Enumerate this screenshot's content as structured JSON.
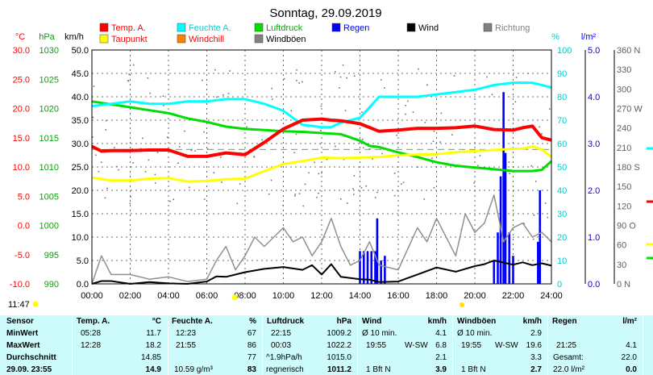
{
  "chart_data": {
    "type": "line",
    "title": "Sonntag, 29.09.2019",
    "x_ticks": [
      "00:00",
      "02:00",
      "04:00",
      "06:00",
      "08:00",
      "10:00",
      "12:00",
      "14:00",
      "16:00",
      "18:00",
      "20:00",
      "22:00",
      "24:00"
    ],
    "axes": {
      "temp": {
        "unit": "°C",
        "ticks": [
          "30.0",
          "25.0",
          "20.0",
          "15.0",
          "10.0",
          "5.0",
          "0.0",
          "-5.0",
          "-10.0"
        ],
        "range": [
          -10,
          30
        ]
      },
      "pressure": {
        "unit": "hPa",
        "ticks": [
          "1030",
          "1025",
          "1020",
          "1015",
          "1010",
          "1005",
          "1000",
          "995",
          "990"
        ],
        "range": [
          990,
          1030
        ]
      },
      "wind": {
        "unit": "km/h",
        "ticks": [
          "50.0",
          "45.0",
          "40.0",
          "35.0",
          "30.0",
          "25.0",
          "20.0",
          "15.0",
          "10.0",
          "5.0",
          "0.0"
        ],
        "range": [
          0,
          50
        ]
      },
      "humidity": {
        "unit": "%",
        "ticks": [
          "100",
          "90",
          "80",
          "70",
          "60",
          "50",
          "40",
          "30",
          "20",
          "10",
          "0"
        ],
        "range": [
          0,
          100
        ]
      },
      "rain": {
        "unit": "l/m²",
        "ticks": [
          "5.0",
          "4.0",
          "3.0",
          "2.0",
          "1.0",
          "0.0"
        ],
        "range": [
          0,
          5
        ]
      },
      "direction": {
        "ticks": [
          "360 N",
          "330",
          "300",
          "270 W",
          "240",
          "210",
          "180 S",
          "150",
          "120",
          "90 O",
          "60",
          "30",
          "0 N"
        ],
        "range": [
          0,
          360
        ]
      }
    },
    "legend": [
      {
        "label": "Temp. A.",
        "color": "#ff0000"
      },
      {
        "label": "Taupunkt",
        "color": "#ffff00"
      },
      {
        "label": "Feuchte A.",
        "color": "#00ffff"
      },
      {
        "label": "Windchill",
        "color": "#ff8000"
      },
      {
        "label": "Luftdruck",
        "color": "#00dd00"
      },
      {
        "label": "Windböen",
        "color": "#808080"
      },
      {
        "label": "Regen",
        "color": "#0000ff"
      },
      {
        "label": "Wind",
        "color": "#000000"
      },
      {
        "label": "Richtung",
        "color": "#808080"
      }
    ],
    "series": [
      {
        "name": "Temp. A.",
        "axis": "temp",
        "color": "#ff0000",
        "x": [
          0,
          0.5,
          1,
          2,
          3,
          4,
          5,
          6,
          7,
          8,
          9,
          10,
          11,
          12,
          12.5,
          13,
          14,
          15,
          16,
          17,
          18,
          19,
          20,
          21,
          22,
          22.5,
          23,
          23.5,
          24
        ],
        "y": [
          13.5,
          12.7,
          12.8,
          12.8,
          12.9,
          12.9,
          11.8,
          11.8,
          12.4,
          12.1,
          14.2,
          16.5,
          18,
          18.2,
          18,
          17.9,
          17.4,
          16.1,
          16.3,
          16.6,
          16.6,
          16.7,
          17,
          16.4,
          16.3,
          16.7,
          17,
          15,
          14.6
        ]
      },
      {
        "name": "Taupunkt",
        "axis": "temp",
        "color": "#ffff00",
        "x": [
          0,
          1,
          2,
          3,
          4,
          5,
          6,
          7,
          8,
          9,
          10,
          11,
          12,
          13,
          14,
          15,
          16,
          17,
          18,
          19,
          20,
          21,
          22,
          22.5,
          23,
          23.5,
          24
        ],
        "y": [
          8.2,
          7.7,
          7.7,
          8,
          8.1,
          7.5,
          7.6,
          7.9,
          8,
          9.3,
          10.5,
          11,
          11.6,
          11.5,
          11.6,
          11.7,
          12,
          12.1,
          12.2,
          12.5,
          12.7,
          12.9,
          13.1,
          13.1,
          13.5,
          13,
          11.7
        ]
      },
      {
        "name": "Feuchte A.",
        "axis": "humidity",
        "color": "#00ffff",
        "x": [
          0,
          1,
          2,
          3,
          4,
          5,
          6,
          7,
          8,
          9,
          10,
          11,
          12,
          12.5,
          13,
          14,
          15,
          16,
          17,
          18,
          19,
          20,
          21,
          22,
          23,
          24
        ],
        "y": [
          76,
          77,
          78,
          77,
          77,
          78,
          78,
          79,
          79,
          77,
          74,
          68,
          67,
          67,
          69,
          71,
          80,
          80,
          80,
          81,
          82,
          83,
          85,
          86,
          86,
          84
        ]
      },
      {
        "name": "Luftdruck",
        "axis": "pressure",
        "color": "#00dd00",
        "x": [
          0,
          1,
          2,
          3,
          4,
          5,
          6,
          7,
          8,
          9,
          10,
          11,
          12,
          13,
          14,
          14.5,
          15,
          16,
          17,
          18,
          19,
          20,
          21,
          22,
          23,
          23.5,
          24
        ],
        "y": [
          1021.2,
          1020.7,
          1020.2,
          1019.7,
          1019.2,
          1018.3,
          1017.7,
          1016.9,
          1016.5,
          1016.3,
          1016.1,
          1016,
          1015.8,
          1015.6,
          1014.5,
          1013.6,
          1013.4,
          1012.5,
          1011.7,
          1010.8,
          1010.2,
          1009.9,
          1009.6,
          1009.3,
          1009.3,
          1009.5,
          1011
        ]
      },
      {
        "name": "Wind",
        "axis": "wind",
        "color": "#000000",
        "x": [
          0,
          0.5,
          1,
          2,
          3,
          4,
          5,
          6,
          6.5,
          7,
          8,
          9,
          10,
          11,
          11.5,
          12,
          12.5,
          13,
          14,
          14.5,
          15,
          16,
          17,
          18,
          19,
          20,
          20.5,
          21,
          22,
          22.5,
          23,
          23.5,
          24
        ],
        "y": [
          0,
          0.6,
          0.6,
          0,
          0.4,
          0.1,
          0,
          0.5,
          1.6,
          1.5,
          2.5,
          3.2,
          3.6,
          3,
          4,
          2,
          4.2,
          1.5,
          1,
          0.9,
          0.4,
          0.5,
          2,
          3.5,
          2.6,
          3.8,
          4.2,
          5,
          4.1,
          4.6,
          4,
          4.4,
          3.9
        ]
      },
      {
        "name": "Windböen",
        "axis": "wind",
        "color": "#909090",
        "x": [
          0,
          0.5,
          1,
          2,
          3,
          4,
          5,
          6,
          6.5,
          7,
          7.5,
          8,
          8.5,
          9,
          10,
          10.5,
          11,
          11.5,
          12,
          12.5,
          13,
          13.5,
          14,
          14.5,
          15,
          16,
          17,
          17.5,
          18,
          18.5,
          19,
          19.5,
          20,
          20.5,
          21,
          21.5,
          22,
          22.5,
          23,
          23.5,
          24
        ],
        "y": [
          0,
          6,
          2,
          2,
          1,
          1.5,
          0.5,
          1,
          5,
          8,
          3,
          6,
          10,
          8,
          12,
          9,
          10,
          6,
          9,
          14,
          8,
          4,
          5,
          9,
          4,
          3,
          12,
          9,
          14,
          10,
          6,
          15,
          11,
          13,
          19,
          9,
          12,
          13,
          10,
          11,
          9
        ]
      },
      {
        "name": "Regen",
        "axis": "rain",
        "color": "#0000ff",
        "type": "bar",
        "x": [
          14.0,
          14.2,
          14.4,
          14.6,
          14.8,
          14.9,
          15.1,
          15.3,
          21.0,
          21.2,
          21.35,
          21.5,
          21.6,
          21.8,
          22.0,
          23.3,
          23.4
        ],
        "y": [
          0.7,
          0.7,
          0.7,
          0.7,
          0.7,
          1.4,
          0.5,
          0.6,
          0.5,
          1.1,
          2.3,
          4.1,
          2.8,
          1.1,
          0.6,
          0.9,
          2.0
        ]
      }
    ]
  },
  "footer_time": "11:47",
  "stats": {
    "row_labels": [
      "Sensor",
      "MinWert",
      "MaxWert",
      "Durchschnitt",
      "29.09. 23:55"
    ],
    "temp": {
      "header": "Temp. A.",
      "unit": "°C",
      "min_time": "05:28",
      "min": "11.7",
      "max_time": "12:28",
      "max": "18.2",
      "avg": "14.85",
      "current": "14.9"
    },
    "humidity": {
      "header": "Feuchte A.",
      "unit": "%",
      "min_time": "12:23",
      "min": "67",
      "max_time": "21:55",
      "max": "86",
      "avg": "77",
      "cur_extra": "10.59 g/m³",
      "current": "83"
    },
    "pressure": {
      "header": "Luftdruck",
      "unit": "hPa",
      "min_time": "22:15",
      "min": "1009.2",
      "max_time": "00:03",
      "max": "1022.2",
      "trend": "^1.9hPa/h",
      "avg": "1015.0",
      "cur_label": "regnerisch",
      "current": "1011.2"
    },
    "wind": {
      "header": "Wind",
      "unit": "km/h",
      "min_label": "Ø 10 min.",
      "min": "4.1",
      "max_time": "19:55",
      "max_dir": "W-SW",
      "max": "6.8",
      "avg": "2.1",
      "cur_label": "1 Bft N",
      "current": "3.9"
    },
    "gusts": {
      "header": "Windböen",
      "unit": "km/h",
      "min_label": "Ø 10 min.",
      "min": "2.9",
      "max_time": "19:55",
      "max_dir": "W-SW",
      "max": "19.6",
      "avg": "3.3",
      "cur_label": "1 Bft N",
      "current": "2.7"
    },
    "rain": {
      "header": "Regen",
      "unit": "l/m²",
      "max_time": "21:25",
      "max": "4.1",
      "total_label": "Gesamt:",
      "total": "22.0",
      "cur_label": "22.0 l/m²",
      "current": "0.0"
    }
  }
}
